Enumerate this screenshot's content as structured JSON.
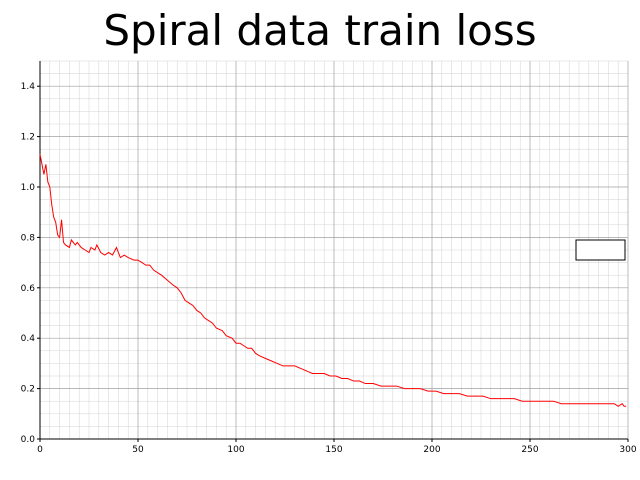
{
  "chart_data": {
    "type": "line",
    "title": "Spiral data train loss",
    "xlabel": "",
    "ylabel": "",
    "xlim": [
      0,
      300
    ],
    "ylim": [
      0,
      1.5
    ],
    "x_ticks": [
      0,
      50,
      100,
      150,
      200,
      250,
      300
    ],
    "y_ticks": [
      "0.0",
      "0.2",
      "0.4",
      "0.6",
      "0.8",
      "1.0",
      "1.2",
      "1.4"
    ],
    "grid": true,
    "legend": {
      "placement": "right",
      "entries": []
    },
    "series": [
      {
        "color": "#ff0000",
        "points": [
          [
            0,
            1.13
          ],
          [
            2,
            1.05
          ],
          [
            3,
            1.09
          ],
          [
            4,
            1.02
          ],
          [
            5,
            1.0
          ],
          [
            6,
            0.93
          ],
          [
            7,
            0.88
          ],
          [
            8,
            0.86
          ],
          [
            9,
            0.81
          ],
          [
            10,
            0.8
          ],
          [
            11,
            0.87
          ],
          [
            12,
            0.78
          ],
          [
            13,
            0.77
          ],
          [
            15,
            0.76
          ],
          [
            16,
            0.79
          ],
          [
            18,
            0.77
          ],
          [
            19,
            0.78
          ],
          [
            21,
            0.76
          ],
          [
            23,
            0.75
          ],
          [
            25,
            0.74
          ],
          [
            26,
            0.76
          ],
          [
            28,
            0.75
          ],
          [
            29,
            0.77
          ],
          [
            31,
            0.74
          ],
          [
            33,
            0.73
          ],
          [
            35,
            0.74
          ],
          [
            37,
            0.73
          ],
          [
            39,
            0.76
          ],
          [
            41,
            0.72
          ],
          [
            43,
            0.73
          ],
          [
            45,
            0.72
          ],
          [
            48,
            0.71
          ],
          [
            50,
            0.71
          ],
          [
            52,
            0.7
          ],
          [
            54,
            0.69
          ],
          [
            56,
            0.69
          ],
          [
            58,
            0.67
          ],
          [
            60,
            0.66
          ],
          [
            62,
            0.65
          ],
          [
            65,
            0.63
          ],
          [
            68,
            0.61
          ],
          [
            70,
            0.6
          ],
          [
            72,
            0.58
          ],
          [
            74,
            0.55
          ],
          [
            76,
            0.54
          ],
          [
            78,
            0.53
          ],
          [
            80,
            0.51
          ],
          [
            82,
            0.5
          ],
          [
            84,
            0.48
          ],
          [
            86,
            0.47
          ],
          [
            88,
            0.46
          ],
          [
            90,
            0.44
          ],
          [
            93,
            0.43
          ],
          [
            95,
            0.41
          ],
          [
            98,
            0.4
          ],
          [
            100,
            0.38
          ],
          [
            102,
            0.38
          ],
          [
            104,
            0.37
          ],
          [
            106,
            0.36
          ],
          [
            108,
            0.36
          ],
          [
            110,
            0.34
          ],
          [
            112,
            0.33
          ],
          [
            115,
            0.32
          ],
          [
            118,
            0.31
          ],
          [
            121,
            0.3
          ],
          [
            124,
            0.29
          ],
          [
            127,
            0.29
          ],
          [
            130,
            0.29
          ],
          [
            133,
            0.28
          ],
          [
            136,
            0.27
          ],
          [
            139,
            0.26
          ],
          [
            142,
            0.26
          ],
          [
            145,
            0.26
          ],
          [
            148,
            0.25
          ],
          [
            151,
            0.25
          ],
          [
            154,
            0.24
          ],
          [
            157,
            0.24
          ],
          [
            160,
            0.23
          ],
          [
            163,
            0.23
          ],
          [
            166,
            0.22
          ],
          [
            170,
            0.22
          ],
          [
            174,
            0.21
          ],
          [
            178,
            0.21
          ],
          [
            182,
            0.21
          ],
          [
            186,
            0.2
          ],
          [
            190,
            0.2
          ],
          [
            194,
            0.2
          ],
          [
            198,
            0.19
          ],
          [
            202,
            0.19
          ],
          [
            206,
            0.18
          ],
          [
            210,
            0.18
          ],
          [
            214,
            0.18
          ],
          [
            218,
            0.17
          ],
          [
            222,
            0.17
          ],
          [
            226,
            0.17
          ],
          [
            230,
            0.16
          ],
          [
            234,
            0.16
          ],
          [
            238,
            0.16
          ],
          [
            242,
            0.16
          ],
          [
            246,
            0.15
          ],
          [
            250,
            0.15
          ],
          [
            254,
            0.15
          ],
          [
            258,
            0.15
          ],
          [
            262,
            0.15
          ],
          [
            266,
            0.14
          ],
          [
            270,
            0.14
          ],
          [
            274,
            0.14
          ],
          [
            278,
            0.14
          ],
          [
            282,
            0.14
          ],
          [
            286,
            0.14
          ],
          [
            290,
            0.14
          ],
          [
            293,
            0.14
          ],
          [
            295,
            0.13
          ],
          [
            297,
            0.14
          ],
          [
            298,
            0.13
          ],
          [
            299,
            0.13
          ]
        ]
      }
    ]
  }
}
